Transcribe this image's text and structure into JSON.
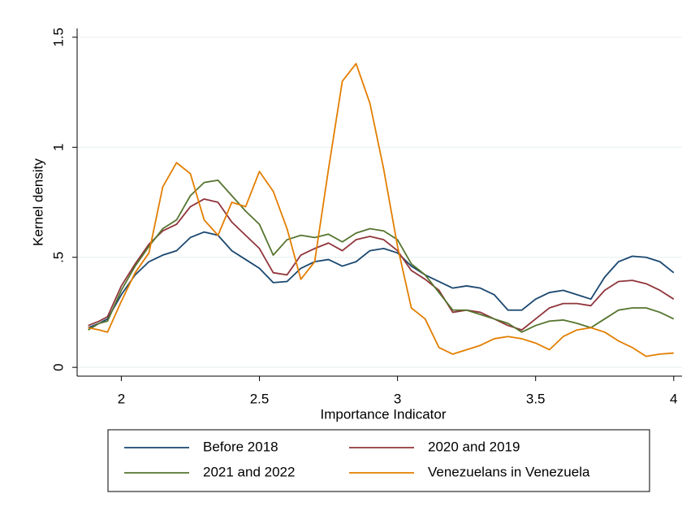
{
  "chart_data": {
    "type": "line",
    "xlabel": "Importance Indicator",
    "ylabel": "Kernel density",
    "x": [
      1.88,
      1.92,
      1.95,
      2.0,
      2.05,
      2.1,
      2.15,
      2.2,
      2.25,
      2.3,
      2.35,
      2.4,
      2.45,
      2.5,
      2.55,
      2.6,
      2.65,
      2.7,
      2.75,
      2.8,
      2.85,
      2.9,
      2.95,
      3.0,
      3.05,
      3.1,
      3.15,
      3.2,
      3.25,
      3.3,
      3.35,
      3.4,
      3.45,
      3.5,
      3.55,
      3.6,
      3.65,
      3.7,
      3.75,
      3.8,
      3.85,
      3.9,
      3.95,
      4.0
    ],
    "series": [
      {
        "name": "Before 2018",
        "color": "#1a476f",
        "values": [
          0.18,
          0.2,
          0.22,
          0.33,
          0.42,
          0.48,
          0.51,
          0.53,
          0.59,
          0.615,
          0.6,
          0.53,
          0.49,
          0.45,
          0.385,
          0.39,
          0.45,
          0.48,
          0.49,
          0.46,
          0.48,
          0.53,
          0.54,
          0.52,
          0.46,
          0.42,
          0.39,
          0.36,
          0.37,
          0.36,
          0.33,
          0.26,
          0.26,
          0.31,
          0.34,
          0.35,
          0.33,
          0.31,
          0.41,
          0.48,
          0.505,
          0.5,
          0.48,
          0.43
        ]
      },
      {
        "name": "2020 and 2019",
        "color": "#90353b",
        "values": [
          0.19,
          0.21,
          0.23,
          0.37,
          0.47,
          0.56,
          0.62,
          0.65,
          0.73,
          0.765,
          0.75,
          0.66,
          0.6,
          0.54,
          0.43,
          0.42,
          0.51,
          0.54,
          0.565,
          0.53,
          0.58,
          0.595,
          0.58,
          0.53,
          0.44,
          0.4,
          0.35,
          0.25,
          0.26,
          0.25,
          0.22,
          0.19,
          0.17,
          0.22,
          0.27,
          0.29,
          0.29,
          0.28,
          0.35,
          0.39,
          0.395,
          0.38,
          0.35,
          0.31
        ]
      },
      {
        "name": "2021 and 2022",
        "color": "#55752f",
        "values": [
          0.17,
          0.2,
          0.21,
          0.35,
          0.46,
          0.55,
          0.63,
          0.67,
          0.78,
          0.84,
          0.85,
          0.78,
          0.71,
          0.65,
          0.51,
          0.58,
          0.6,
          0.59,
          0.605,
          0.57,
          0.61,
          0.63,
          0.62,
          0.58,
          0.47,
          0.42,
          0.34,
          0.26,
          0.26,
          0.24,
          0.22,
          0.2,
          0.16,
          0.19,
          0.21,
          0.215,
          0.2,
          0.18,
          0.22,
          0.26,
          0.27,
          0.27,
          0.25,
          0.22
        ]
      },
      {
        "name": "Venezuelans in Venezuela",
        "color": "#e37e00",
        "values": [
          0.18,
          0.17,
          0.16,
          0.3,
          0.43,
          0.52,
          0.82,
          0.93,
          0.88,
          0.67,
          0.6,
          0.75,
          0.73,
          0.89,
          0.8,
          0.63,
          0.4,
          0.48,
          0.9,
          1.3,
          1.38,
          1.2,
          0.9,
          0.55,
          0.27,
          0.22,
          0.09,
          0.06,
          0.08,
          0.1,
          0.13,
          0.14,
          0.13,
          0.11,
          0.08,
          0.14,
          0.17,
          0.18,
          0.16,
          0.12,
          0.09,
          0.05,
          0.06,
          0.065
        ]
      }
    ],
    "xlim": [
      1.84,
      4.03
    ],
    "xticks": [
      2,
      2.5,
      3,
      3.5,
      4
    ],
    "ylim": [
      -0.04,
      1.54
    ],
    "yticks": [
      0,
      {
        "value": 0.5,
        "label": ".5"
      },
      1,
      1.5
    ],
    "grid": true
  }
}
